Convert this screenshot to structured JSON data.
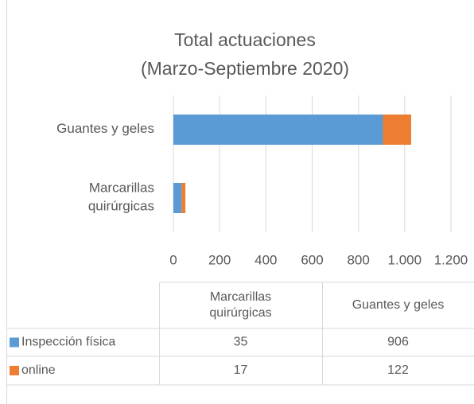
{
  "chart_data": {
    "type": "bar",
    "orientation": "horizontal",
    "stacked": true,
    "title": [
      "Total actuaciones",
      "(Marzo-Septiembre 2020)"
    ],
    "categories": [
      "Marcarillas quirúrgicas",
      "Guantes y geles"
    ],
    "series": [
      {
        "name": "Inspección física",
        "color": "#5b9bd5",
        "values": [
          35,
          906
        ]
      },
      {
        "name": "online",
        "color": "#ed7d31",
        "values": [
          17,
          122
        ]
      }
    ],
    "xlim": [
      0,
      1200
    ],
    "xticks": [
      0,
      200,
      400,
      600,
      800,
      {
        "value": 1000,
        "label": "1.000"
      },
      {
        "value": 1200,
        "label": "1.200"
      }
    ],
    "grid": true,
    "data_table": true
  }
}
